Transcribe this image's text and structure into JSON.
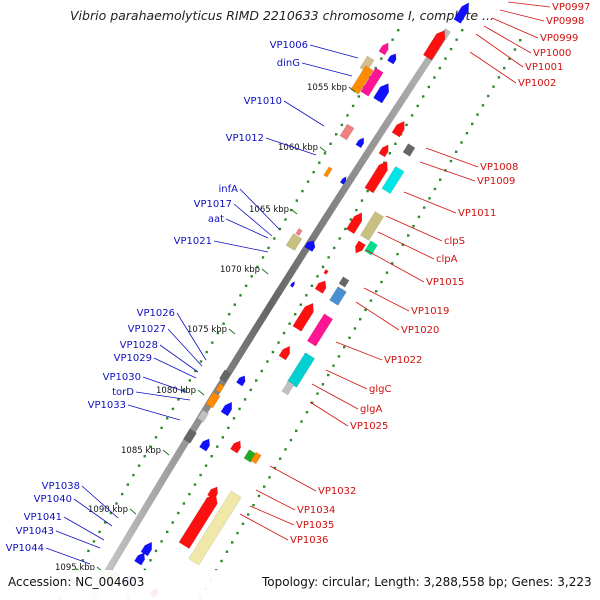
{
  "title": "Vibrio parahaemolyticus RIMD 2210633 chromosome I, complete ...",
  "accession": "Accession: NC_004603",
  "topology": "Topology: circular; Length: 3,288,558 bp; Genes: 3,223",
  "colors": {
    "backbone": "#888888",
    "minus_label": "#1010c0",
    "plus_label": "#d01010",
    "tick": "#1a7a1a"
  },
  "kbp_ticks": [
    "1055 kbp",
    "1060 kbp",
    "1065 kbp",
    "1070 kbp",
    "1075 kbp",
    "1080 kbp",
    "1085 kbp",
    "1090 kbp",
    "1095 kbp"
  ],
  "left_labels": [
    "VP1006",
    "dinG",
    "VP1010",
    "VP1012",
    "infA",
    "VP1017",
    "aat",
    "VP1021",
    "VP1026",
    "VP1027",
    "VP1028",
    "VP1029",
    "VP1030",
    "torD",
    "VP1033",
    "VP1038",
    "VP1040",
    "VP1041",
    "VP1043",
    "VP1044"
  ],
  "right_labels": [
    "VP0997",
    "VP0998",
    "VP0999",
    "VP1000",
    "VP1001",
    "VP1002",
    "VP1008",
    "VP1009",
    "VP1011",
    "clpS",
    "clpA",
    "VP1015",
    "VP1019",
    "VP1020",
    "VP1022",
    "glgC",
    "glgA",
    "VP1025",
    "VP1032",
    "VP1034",
    "VP1035",
    "VP1036"
  ]
}
